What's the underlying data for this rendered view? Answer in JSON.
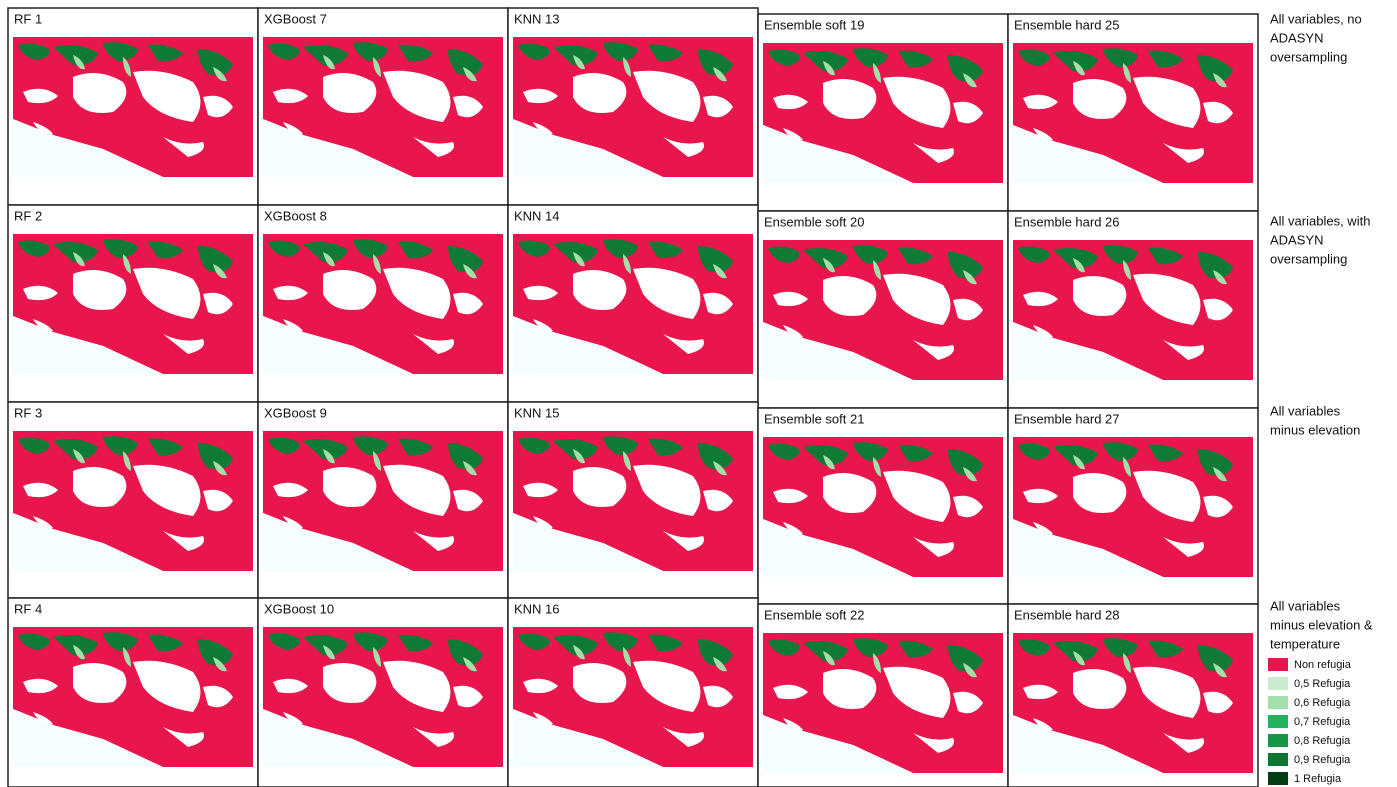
{
  "panels": [
    [
      "RF 1",
      "XGBoost 7",
      "KNN 13",
      "Ensemble soft 19",
      "Ensemble hard 25"
    ],
    [
      "RF 2",
      "XGBoost 8",
      "KNN 14",
      "Ensemble soft 20",
      "Ensemble hard 26"
    ],
    [
      "RF 3",
      "XGBoost 9",
      "KNN 15",
      "Ensemble soft 21",
      "Ensemble hard 27"
    ],
    [
      "RF 4",
      "XGBoost 10",
      "KNN 16",
      "Ensemble soft 22",
      "Ensemble hard 28"
    ]
  ],
  "row_labels": [
    [
      "All variables, no",
      "ADASYN",
      "oversampling"
    ],
    [
      "All variables, with",
      "ADASYN",
      "oversampling"
    ],
    [
      "All variables",
      "minus elevation"
    ],
    [
      "All variables",
      "minus elevation &",
      "temperature"
    ]
  ],
  "legend": [
    {
      "label": "Non refugia",
      "color": "#e8164c"
    },
    {
      "label": "0,5 Refugia",
      "color": "#c9edcc"
    },
    {
      "label": "0,6 Refugia",
      "color": "#a3dfa9"
    },
    {
      "label": "0,7 Refugia",
      "color": "#22b35c"
    },
    {
      "label": "0,8 Refugia",
      "color": "#179646"
    },
    {
      "label": "0,9 Refugia",
      "color": "#0c7632"
    },
    {
      "label": "1 Refugia",
      "color": "#033d14"
    }
  ]
}
